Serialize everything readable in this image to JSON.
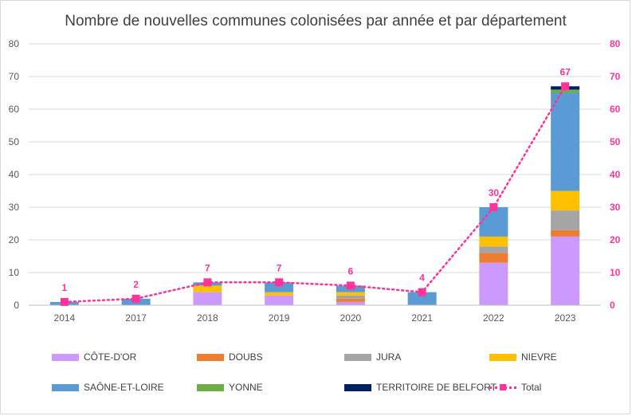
{
  "chart_data": {
    "type": "bar",
    "title": "Nombre de nouvelles communes colonisées par année et par département",
    "categories": [
      "2014",
      "2017",
      "2018",
      "2019",
      "2020",
      "2021",
      "2022",
      "2023"
    ],
    "ylim": [
      0,
      80
    ],
    "y2lim": [
      0,
      80
    ],
    "yticks": [
      "0",
      "10",
      "20",
      "30",
      "40",
      "50",
      "60",
      "70",
      "80"
    ],
    "grid": true,
    "legend_position": "bottom",
    "series": [
      {
        "name": "CÔTE-D'OR",
        "color": "#cc99ff",
        "values": [
          0,
          0,
          4,
          3,
          1,
          0,
          13,
          21
        ]
      },
      {
        "name": "DOUBS",
        "color": "#ed7d31",
        "values": [
          0,
          0,
          0,
          0,
          1,
          0,
          3,
          2
        ]
      },
      {
        "name": "JURA",
        "color": "#a5a5a5",
        "values": [
          0,
          0,
          0,
          0,
          1,
          0,
          2,
          6
        ]
      },
      {
        "name": "NIEVRE",
        "color": "#ffc000",
        "values": [
          0,
          0,
          2,
          1,
          1,
          0,
          3,
          6
        ]
      },
      {
        "name": "SAÔNE-ET-LOIRE",
        "color": "#5b9bd5",
        "values": [
          1,
          2,
          1,
          3,
          2,
          4,
          9,
          30
        ]
      },
      {
        "name": "YONNE",
        "color": "#70ad47",
        "values": [
          0,
          0,
          0,
          0,
          0,
          0,
          0,
          1
        ]
      },
      {
        "name": "TERRITOIRE DE BELFORT",
        "color": "#002060",
        "values": [
          0,
          0,
          0,
          0,
          0,
          0,
          0,
          1
        ]
      }
    ],
    "line_series": {
      "name": "Total",
      "color": "#ff3399",
      "values": [
        1,
        2,
        7,
        7,
        6,
        4,
        30,
        67
      ],
      "labels": [
        "1",
        "2",
        "7",
        "7",
        "6",
        "4",
        "30",
        "67"
      ]
    }
  }
}
